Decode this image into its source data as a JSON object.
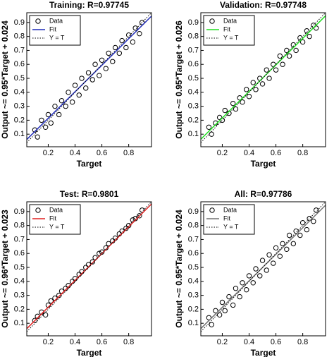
{
  "chart_data": [
    {
      "type": "scatter",
      "title": "Training: R=0.97745",
      "xlabel": "Target",
      "ylabel": "Output ~= 0.95*Target + 0.024",
      "xlim": [
        0.04,
        0.97
      ],
      "ylim": [
        0.01,
        0.97
      ],
      "xticks": [
        0.2,
        0.4,
        0.6,
        0.8
      ],
      "yticks": [
        0.1,
        0.2,
        0.3,
        0.4,
        0.5,
        0.6,
        0.7,
        0.8,
        0.9
      ],
      "series": [
        {
          "name": "Data",
          "x": [
            0.1,
            0.12,
            0.15,
            0.18,
            0.2,
            0.22,
            0.25,
            0.28,
            0.3,
            0.33,
            0.35,
            0.38,
            0.4,
            0.43,
            0.45,
            0.48,
            0.5,
            0.53,
            0.55,
            0.58,
            0.6,
            0.63,
            0.65,
            0.68,
            0.7,
            0.73,
            0.75,
            0.78,
            0.8,
            0.83,
            0.85,
            0.88,
            0.9
          ],
          "y": [
            0.13,
            0.08,
            0.2,
            0.15,
            0.24,
            0.18,
            0.3,
            0.24,
            0.34,
            0.3,
            0.4,
            0.33,
            0.45,
            0.38,
            0.5,
            0.43,
            0.54,
            0.49,
            0.6,
            0.52,
            0.63,
            0.57,
            0.68,
            0.62,
            0.72,
            0.68,
            0.77,
            0.72,
            0.81,
            0.76,
            0.86,
            0.82,
            0.9
          ]
        },
        {
          "name": "Fit",
          "color": "#1f2bb8",
          "slope": 0.95,
          "intercept": 0.024
        },
        {
          "name": "Y = T"
        }
      ]
    },
    {
      "type": "scatter",
      "title": "Validation: R=0.97748",
      "xlabel": "Target",
      "ylabel": "Output ~= 0.95*Target + 0.026",
      "xlim": [
        0.04,
        0.97
      ],
      "ylim": [
        0.01,
        0.97
      ],
      "xticks": [
        0.2,
        0.4,
        0.6,
        0.8
      ],
      "yticks": [
        0.1,
        0.2,
        0.3,
        0.4,
        0.5,
        0.6,
        0.7,
        0.8,
        0.9
      ],
      "series": [
        {
          "name": "Data",
          "x": [
            0.1,
            0.12,
            0.15,
            0.18,
            0.2,
            0.22,
            0.25,
            0.28,
            0.3,
            0.33,
            0.35,
            0.38,
            0.4,
            0.43,
            0.45,
            0.48,
            0.5,
            0.53,
            0.55,
            0.58,
            0.6,
            0.63,
            0.65,
            0.68,
            0.7,
            0.73,
            0.75,
            0.78,
            0.8,
            0.83,
            0.85,
            0.88,
            0.9
          ],
          "y": [
            0.15,
            0.1,
            0.18,
            0.22,
            0.2,
            0.27,
            0.25,
            0.32,
            0.28,
            0.36,
            0.33,
            0.42,
            0.37,
            0.47,
            0.42,
            0.5,
            0.46,
            0.56,
            0.5,
            0.6,
            0.56,
            0.66,
            0.6,
            0.7,
            0.66,
            0.74,
            0.7,
            0.79,
            0.76,
            0.84,
            0.8,
            0.88,
            0.86
          ]
        },
        {
          "name": "Fit",
          "color": "#22dd22",
          "slope": 0.95,
          "intercept": 0.026
        },
        {
          "name": "Y = T"
        }
      ]
    },
    {
      "type": "scatter",
      "title": "Test: R=0.9801",
      "xlabel": "Target",
      "ylabel": "Output ~= 0.96*Target + 0.023",
      "xlim": [
        0.04,
        0.97
      ],
      "ylim": [
        0.01,
        0.97
      ],
      "xticks": [
        0.2,
        0.4,
        0.6,
        0.8
      ],
      "yticks": [
        0.1,
        0.2,
        0.3,
        0.4,
        0.5,
        0.6,
        0.7,
        0.8,
        0.9
      ],
      "series": [
        {
          "name": "Data",
          "x": [
            0.1,
            0.12,
            0.15,
            0.18,
            0.2,
            0.22,
            0.25,
            0.28,
            0.3,
            0.33,
            0.35,
            0.38,
            0.4,
            0.43,
            0.45,
            0.48,
            0.5,
            0.53,
            0.55,
            0.58,
            0.6,
            0.63,
            0.65,
            0.68,
            0.7,
            0.73,
            0.75,
            0.78,
            0.8,
            0.83,
            0.85,
            0.88,
            0.9
          ],
          "y": [
            0.12,
            0.15,
            0.18,
            0.16,
            0.23,
            0.26,
            0.28,
            0.3,
            0.33,
            0.35,
            0.37,
            0.4,
            0.42,
            0.45,
            0.47,
            0.5,
            0.52,
            0.54,
            0.57,
            0.6,
            0.61,
            0.64,
            0.67,
            0.69,
            0.71,
            0.74,
            0.76,
            0.78,
            0.8,
            0.84,
            0.85,
            0.87,
            0.91
          ]
        },
        {
          "name": "Fit",
          "color": "#e02020",
          "slope": 0.96,
          "intercept": 0.023
        },
        {
          "name": "Y = T"
        }
      ]
    },
    {
      "type": "scatter",
      "title": "All: R=0.97786",
      "xlabel": "Target",
      "ylabel": "Output ~= 0.95*Target + 0.024",
      "xlim": [
        0.04,
        0.97
      ],
      "ylim": [
        0.01,
        0.97
      ],
      "xticks": [
        0.2,
        0.4,
        0.6,
        0.8
      ],
      "yticks": [
        0.1,
        0.2,
        0.3,
        0.4,
        0.5,
        0.6,
        0.7,
        0.8,
        0.9
      ],
      "series": [
        {
          "name": "Data",
          "x": [
            0.1,
            0.12,
            0.15,
            0.18,
            0.2,
            0.22,
            0.25,
            0.28,
            0.3,
            0.33,
            0.35,
            0.38,
            0.4,
            0.43,
            0.45,
            0.48,
            0.5,
            0.53,
            0.55,
            0.58,
            0.6,
            0.63,
            0.65,
            0.68,
            0.7,
            0.73,
            0.75,
            0.78,
            0.8,
            0.83,
            0.85,
            0.88,
            0.9
          ],
          "y": [
            0.14,
            0.09,
            0.19,
            0.16,
            0.25,
            0.19,
            0.29,
            0.23,
            0.35,
            0.29,
            0.39,
            0.34,
            0.44,
            0.39,
            0.49,
            0.44,
            0.55,
            0.48,
            0.59,
            0.53,
            0.64,
            0.58,
            0.67,
            0.63,
            0.73,
            0.67,
            0.76,
            0.73,
            0.82,
            0.77,
            0.85,
            0.83,
            0.91
          ]
        },
        {
          "name": "Fit",
          "color": "#707070",
          "slope": 0.95,
          "intercept": 0.024
        },
        {
          "name": "Y = T"
        }
      ]
    }
  ]
}
